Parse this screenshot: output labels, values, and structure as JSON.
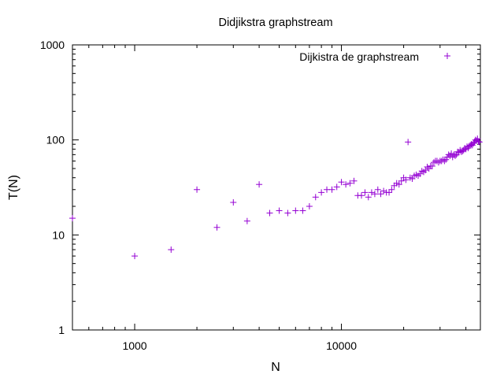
{
  "chart_data": {
    "type": "scatter",
    "title": "Didjikstra graphstream",
    "xlabel": "N",
    "ylabel": "T(N)",
    "x_scale": "log",
    "y_scale": "log",
    "xlim": [
      500,
      47000
    ],
    "ylim": [
      1,
      1000
    ],
    "x_ticks": [
      {
        "value": 1000,
        "label": "1000"
      },
      {
        "value": 10000,
        "label": "10000"
      }
    ],
    "y_ticks": [
      {
        "value": 1,
        "label": "1"
      },
      {
        "value": 10,
        "label": "10"
      },
      {
        "value": 100,
        "label": "100"
      },
      {
        "value": 1000,
        "label": "1000"
      }
    ],
    "grid": false,
    "legend_position": "top-right",
    "marker": "+",
    "color": "#9400d3",
    "series": [
      {
        "name": "Dijkistra de graphstream",
        "points": [
          [
            500,
            15
          ],
          [
            1000,
            6
          ],
          [
            1500,
            7
          ],
          [
            2000,
            30
          ],
          [
            2500,
            12
          ],
          [
            3000,
            22
          ],
          [
            3500,
            14
          ],
          [
            4000,
            34
          ],
          [
            4500,
            17
          ],
          [
            5000,
            18
          ],
          [
            5500,
            17
          ],
          [
            6000,
            18
          ],
          [
            6500,
            18
          ],
          [
            7000,
            20
          ],
          [
            7500,
            25
          ],
          [
            8000,
            28
          ],
          [
            8500,
            30
          ],
          [
            9000,
            30
          ],
          [
            9500,
            32
          ],
          [
            10000,
            36
          ],
          [
            10500,
            34
          ],
          [
            11000,
            35
          ],
          [
            11500,
            37
          ],
          [
            12000,
            26
          ],
          [
            12500,
            26
          ],
          [
            13000,
            28
          ],
          [
            13500,
            25
          ],
          [
            14000,
            28
          ],
          [
            14500,
            27
          ],
          [
            15000,
            30
          ],
          [
            15500,
            27
          ],
          [
            16000,
            29
          ],
          [
            16500,
            28
          ],
          [
            17000,
            28
          ],
          [
            17500,
            30
          ],
          [
            18000,
            33
          ],
          [
            18500,
            35
          ],
          [
            19000,
            34
          ],
          [
            19500,
            37
          ],
          [
            20000,
            40
          ],
          [
            20500,
            38
          ],
          [
            21000,
            95
          ],
          [
            21500,
            40
          ],
          [
            22000,
            39
          ],
          [
            22500,
            42
          ],
          [
            23000,
            43
          ],
          [
            23500,
            42
          ],
          [
            24000,
            44
          ],
          [
            24500,
            47
          ],
          [
            25000,
            46
          ],
          [
            25500,
            48
          ],
          [
            26000,
            52
          ],
          [
            26500,
            50
          ],
          [
            27000,
            53
          ],
          [
            27500,
            53
          ],
          [
            28000,
            58
          ],
          [
            28500,
            60
          ],
          [
            29000,
            60
          ],
          [
            29500,
            58
          ],
          [
            30000,
            60
          ],
          [
            30500,
            60
          ],
          [
            31000,
            62
          ],
          [
            31500,
            60
          ],
          [
            32000,
            62
          ],
          [
            32500,
            66
          ],
          [
            33000,
            70
          ],
          [
            33500,
            68
          ],
          [
            34000,
            72
          ],
          [
            34500,
            66
          ],
          [
            35000,
            70
          ],
          [
            35500,
            68
          ],
          [
            36000,
            70
          ],
          [
            36500,
            75
          ],
          [
            37000,
            74
          ],
          [
            37500,
            78
          ],
          [
            38000,
            75
          ],
          [
            38500,
            76
          ],
          [
            39000,
            78
          ],
          [
            39500,
            82
          ],
          [
            40000,
            80
          ],
          [
            40500,
            85
          ],
          [
            41000,
            82
          ],
          [
            41500,
            86
          ],
          [
            42000,
            88
          ],
          [
            42500,
            90
          ],
          [
            43000,
            88
          ],
          [
            43500,
            92
          ],
          [
            44000,
            95
          ],
          [
            44500,
            100
          ],
          [
            45000,
            98
          ],
          [
            45500,
            103
          ],
          [
            46000,
            96
          ],
          [
            46500,
            95
          ]
        ]
      }
    ]
  }
}
